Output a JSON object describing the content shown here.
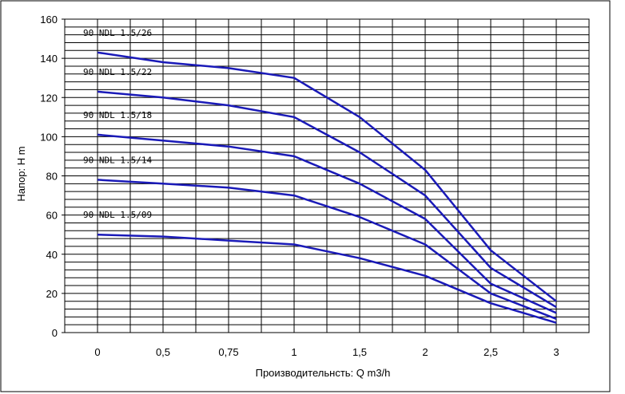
{
  "chart_data": {
    "type": "line",
    "title": "",
    "xlabel": "Производительнсть: Q m3/h",
    "ylabel": "Напор: H m",
    "x_categories": [
      "0",
      "0,5",
      "0,75",
      "1",
      "1,5",
      "2",
      "2,5",
      "3"
    ],
    "x_values": [
      0,
      0.5,
      0.75,
      1,
      1.5,
      2,
      2.5,
      3
    ],
    "y_ticks": [
      "0",
      "20",
      "40",
      "60",
      "80",
      "100",
      "120",
      "140",
      "160"
    ],
    "ylim": [
      0,
      160
    ],
    "grid": true,
    "line_color": "#1a1ab8",
    "series": [
      {
        "name": "90 NDL 1.5/26",
        "values": [
          143,
          138,
          135,
          130,
          110,
          83,
          42,
          16
        ]
      },
      {
        "name": "90 NDL 1.5/22",
        "values": [
          123,
          120,
          116,
          110,
          92,
          70,
          33,
          13
        ]
      },
      {
        "name": "90 NDL 1.5/18",
        "values": [
          101,
          98,
          95,
          90,
          76,
          58,
          25,
          10
        ]
      },
      {
        "name": "90 NDL 1.5/14",
        "values": [
          78,
          76,
          74,
          70,
          59,
          45,
          20,
          7
        ]
      },
      {
        "name": "90 NDL 1.5/09",
        "values": [
          50,
          49,
          47,
          45,
          38,
          29,
          15,
          5
        ]
      }
    ]
  }
}
